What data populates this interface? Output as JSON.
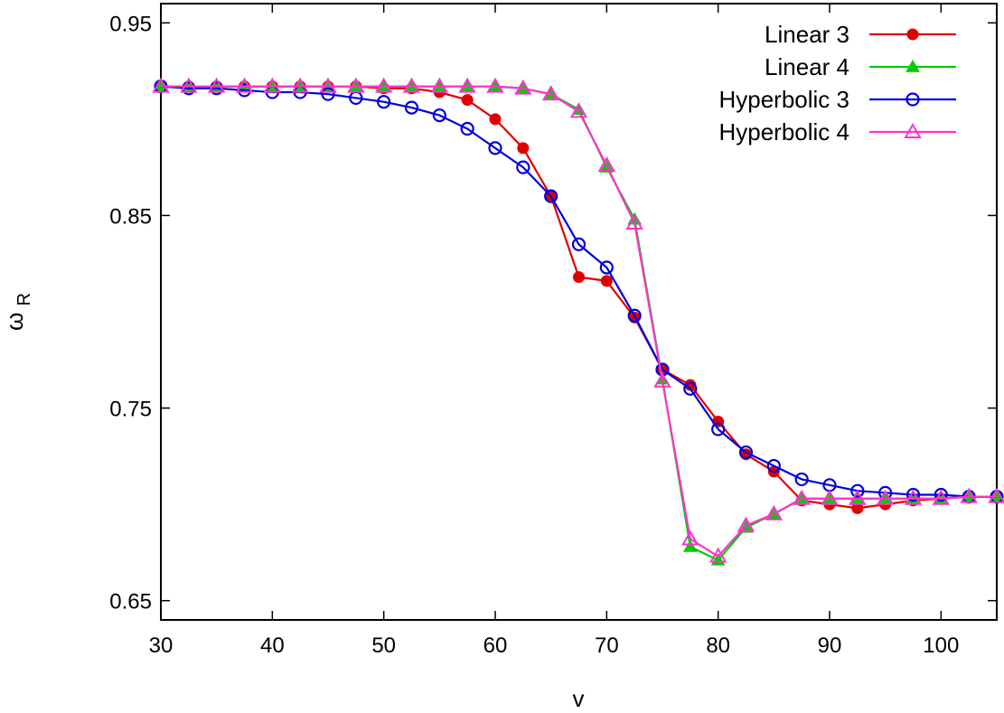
{
  "chart_data": {
    "type": "line",
    "title": "",
    "xlabel": "v",
    "ylabel": "ω",
    "ylabel_subscript": "R",
    "xlim": [
      30,
      105
    ],
    "ylim": [
      0.64,
      0.96
    ],
    "xticks": [
      30,
      40,
      50,
      60,
      70,
      80,
      90,
      100
    ],
    "xtick_labels": [
      "30",
      "40",
      "50",
      "60",
      "70",
      "80",
      "90",
      "100"
    ],
    "yticks": [
      0.65,
      0.75,
      0.85,
      0.95
    ],
    "ytick_labels": [
      "0.65",
      "0.75",
      "0.85",
      "0.95"
    ],
    "grid": false,
    "legend_position": "top-right",
    "x": [
      30,
      32.5,
      35,
      37.5,
      40,
      42.5,
      45,
      47.5,
      50,
      52.5,
      55,
      57.5,
      60,
      62.5,
      65,
      67.5,
      70,
      72.5,
      75,
      77.5,
      80,
      82.5,
      85,
      87.5,
      90,
      92.5,
      95,
      97.5,
      100,
      102.5,
      105
    ],
    "series": [
      {
        "name": "Linear 3",
        "color": "#e00000",
        "marker": "filled-circle",
        "values": [
          0.917,
          0.917,
          0.917,
          0.917,
          0.917,
          0.917,
          0.917,
          0.917,
          0.916,
          0.916,
          0.914,
          0.91,
          0.9,
          0.885,
          0.86,
          0.818,
          0.816,
          0.797,
          0.77,
          0.762,
          0.743,
          0.726,
          0.717,
          0.702,
          0.7,
          0.698,
          0.7,
          0.702,
          0.703,
          0.704,
          0.704
        ]
      },
      {
        "name": "Linear 4",
        "color": "#00cc00",
        "marker": "filled-triangle",
        "values": [
          0.917,
          0.917,
          0.917,
          0.917,
          0.917,
          0.917,
          0.917,
          0.917,
          0.917,
          0.917,
          0.917,
          0.917,
          0.917,
          0.916,
          0.913,
          0.905,
          0.875,
          0.848,
          0.765,
          0.678,
          0.671,
          0.688,
          0.695,
          0.703,
          0.703,
          0.703,
          0.703,
          0.703,
          0.703,
          0.704,
          0.704
        ]
      },
      {
        "name": "Hyperbolic 3",
        "color": "#0000dd",
        "marker": "open-circle",
        "values": [
          0.917,
          0.916,
          0.916,
          0.915,
          0.914,
          0.914,
          0.913,
          0.911,
          0.909,
          0.906,
          0.902,
          0.895,
          0.885,
          0.875,
          0.86,
          0.835,
          0.823,
          0.798,
          0.77,
          0.76,
          0.739,
          0.727,
          0.72,
          0.713,
          0.71,
          0.707,
          0.706,
          0.705,
          0.705,
          0.704,
          0.704
        ]
      },
      {
        "name": "Hyperbolic 4",
        "color": "#ff33cc",
        "marker": "open-triangle",
        "values": [
          0.917,
          0.917,
          0.917,
          0.917,
          0.917,
          0.917,
          0.917,
          0.917,
          0.917,
          0.917,
          0.917,
          0.917,
          0.917,
          0.916,
          0.913,
          0.904,
          0.876,
          0.846,
          0.764,
          0.682,
          0.673,
          0.689,
          0.695,
          0.703,
          0.703,
          0.703,
          0.703,
          0.703,
          0.703,
          0.704,
          0.704
        ]
      }
    ]
  }
}
